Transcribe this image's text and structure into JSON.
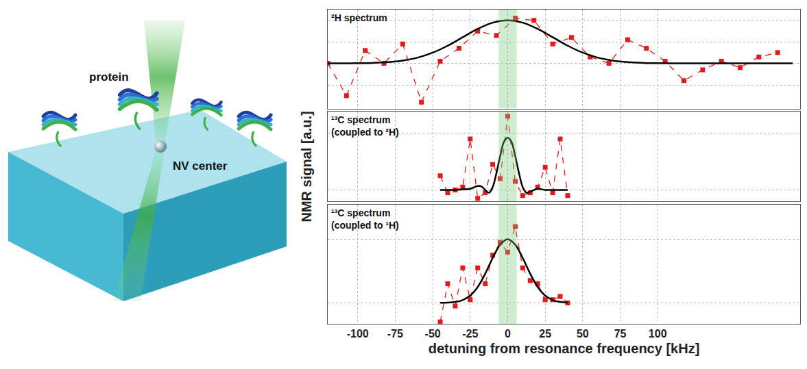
{
  "diagram": {
    "labels": {
      "protein": "protein",
      "nv_center": "NV center"
    }
  },
  "figure": {
    "ylabel": "NMR signal [a.u.]"
  },
  "chart_data": [
    {
      "type": "line",
      "title": "²H spectrum",
      "xlim": [
        -120,
        195
      ],
      "xticks": [
        -100,
        -75,
        -50,
        -25,
        0,
        25,
        50,
        75,
        100
      ],
      "ylim": [
        -1.05,
        1.25
      ],
      "yticks": [
        -0.5,
        0,
        0.5,
        1
      ],
      "grid": true,
      "tick_labels": false,
      "band": [
        -6,
        6
      ],
      "series": [
        {
          "type": "scatter",
          "color": "#e31a1c",
          "marker": "square",
          "line_style": "dashed",
          "x": [
            -120,
            -107.5,
            -95,
            -82.5,
            -70,
            -57.5,
            -45,
            -32.5,
            -20,
            -7.5,
            5,
            17.5,
            30,
            42.5,
            55,
            67.5,
            80,
            92.5,
            105,
            117.5,
            130,
            142.5,
            155,
            167.5,
            180
          ],
          "values": [
            0,
            -0.75,
            0.3,
            0,
            0.45,
            -0.9,
            0.05,
            0.35,
            0.75,
            0.65,
            1.05,
            1.0,
            0.45,
            0.6,
            0.15,
            0,
            0.55,
            0.35,
            0.05,
            -0.4,
            -0.15,
            0.05,
            -0.1,
            0.15,
            0.25
          ]
        },
        {
          "type": "line",
          "color": "#000000",
          "line_style": "solid",
          "x": [
            -120,
            -110,
            -100,
            -90,
            -80,
            -70,
            -60,
            -50,
            -40,
            -30,
            -20,
            -10,
            0,
            10,
            20,
            30,
            40,
            50,
            60,
            70,
            80,
            90,
            100,
            110,
            120,
            130,
            140,
            150,
            160,
            170,
            180,
            190
          ],
          "values": [
            0,
            0,
            0.004,
            0.011,
            0.028,
            0.066,
            0.135,
            0.249,
            0.411,
            0.607,
            0.801,
            0.946,
            1,
            0.946,
            0.801,
            0.607,
            0.411,
            0.249,
            0.135,
            0.066,
            0.028,
            0.011,
            0.004,
            0,
            0,
            0,
            0,
            0,
            0,
            0,
            0,
            0
          ]
        }
      ]
    },
    {
      "type": "line",
      "title": "¹³C spectrum (coupled to ²H)",
      "xlim": [
        -120,
        195
      ],
      "xticks": [
        -100,
        -75,
        -50,
        -25,
        0,
        25,
        50,
        75,
        100
      ],
      "ylim": [
        -0.2,
        1.38
      ],
      "yticks": [
        0,
        1
      ],
      "grid": true,
      "tick_labels": false,
      "band": [
        -6,
        6
      ],
      "series": [
        {
          "type": "scatter",
          "color": "#e31a1c",
          "marker": "square",
          "line_style": "dashed",
          "x": [
            -45,
            -40,
            -35,
            -30,
            -25,
            -20,
            -15,
            -10,
            -5,
            0,
            5,
            10,
            15,
            20,
            25,
            30,
            35,
            40
          ],
          "values": [
            0.25,
            -0.05,
            0,
            0.05,
            0.9,
            -0.15,
            -0.05,
            0.45,
            0.2,
            1.3,
            0.15,
            -0.1,
            -0.05,
            0.05,
            0.4,
            -0.05,
            0.9,
            -0.1
          ]
        },
        {
          "type": "line",
          "color": "#000000",
          "line_style": "solid",
          "x": [
            -45,
            -40,
            -35,
            -30,
            -25,
            -20,
            -17.5,
            -15,
            -12.5,
            -10,
            -7.5,
            -5,
            -2.5,
            0,
            2.5,
            5,
            7.5,
            10,
            12.5,
            15,
            20,
            25,
            30,
            35,
            40
          ],
          "values": [
            0,
            0,
            0,
            0.01,
            0.02,
            0.07,
            0.06,
            0,
            -0.05,
            0.05,
            0.3,
            0.6,
            0.85,
            0.92,
            0.85,
            0.6,
            0.3,
            0.05,
            -0.05,
            -0.03,
            0.02,
            0,
            0,
            0,
            0
          ]
        }
      ]
    },
    {
      "type": "line",
      "title": "¹³C spectrum (coupled to ¹H)",
      "xlabel": "detuning from resonance frequency [kHz]",
      "xlim": [
        -120,
        195
      ],
      "xticks": [
        -100,
        -75,
        -50,
        -25,
        0,
        25,
        50,
        75,
        100
      ],
      "ylim": [
        -0.33,
        1.55
      ],
      "yticks": [
        0,
        1
      ],
      "grid": true,
      "tick_labels": "x",
      "band": [
        -6,
        6
      ],
      "series": [
        {
          "type": "scatter",
          "color": "#e31a1c",
          "marker": "square",
          "line_style": "dashed",
          "x": [
            -45,
            -40,
            -35,
            -30,
            -25,
            -20,
            -15,
            -10,
            -5,
            0,
            5,
            10,
            15,
            20,
            25,
            30,
            35,
            40
          ],
          "values": [
            -0.3,
            0.3,
            -0.05,
            0.55,
            0.05,
            0.55,
            0.3,
            0.75,
            0.95,
            0.8,
            1.2,
            0.55,
            0.35,
            0.3,
            0.05,
            0.05,
            0.1,
            0
          ]
        },
        {
          "type": "line",
          "color": "#000000",
          "line_style": "solid",
          "x": [
            -45,
            -40,
            -35,
            -30,
            -25,
            -20,
            -15,
            -10,
            -5,
            0,
            5,
            10,
            15,
            20,
            25,
            30,
            35,
            40
          ],
          "values": [
            0.001,
            0.004,
            0.014,
            0.044,
            0.114,
            0.249,
            0.458,
            0.707,
            0.917,
            1,
            0.917,
            0.707,
            0.458,
            0.249,
            0.114,
            0.044,
            0.014,
            0.004
          ]
        }
      ]
    }
  ]
}
